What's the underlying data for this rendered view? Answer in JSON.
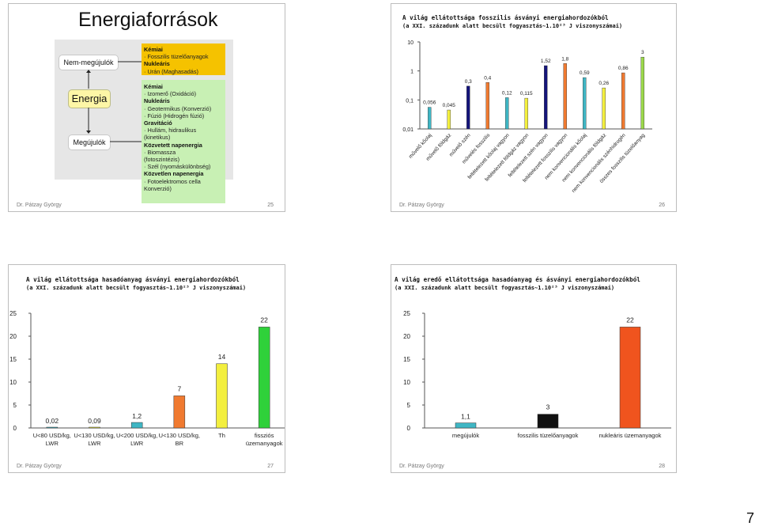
{
  "page_number": "7",
  "slide25": {
    "title": "Energiaforrások",
    "non_renewable": "Nem-megújulók",
    "energy": "Energia",
    "renewable": "Megújulók",
    "yellow_box": [
      "Kémiai",
      "· Fosszilis tüzelőanyagok",
      "Nukleáris",
      "· Urán (Maghasadás)"
    ],
    "green_box": [
      "Kémiai",
      "· Izomerő (Oxidáció)",
      "Nukleáris",
      "· Geotermikus (Konverzió)",
      "· Fúzió (Hidrogén fúzió)",
      "Gravitáció",
      "· Hullám, hidraulikus",
      "(kinetikus)",
      "Közvetett napenergia",
      "· Biomassza",
      "(fotoszintézis)",
      "· Szél (nyomáskülönbség)",
      "Közvetlen napenergia",
      "· Fotoelektromos cella",
      "Konverzió)"
    ],
    "author": "Dr. Pátzay György",
    "number": "25"
  },
  "slide26": {
    "title_line1": "A világ ellátottsága fosszilis ásványi energiahordozókból",
    "title_line2": "(a XXI. századunk alatt becsült fogyasztás~1.10²³ J viszonyszámai)",
    "author": "Dr. Pátzay György",
    "number": "26"
  },
  "slide27": {
    "title_line1": "A világ ellátottsága hasadóanyag ásványi energiahordozókból",
    "title_line2": "(a XXI. századunk alatt becsült fogyasztás~1.10²³ J viszonyszámai)",
    "author": "Dr. Pátzay György",
    "number": "27"
  },
  "slide28": {
    "title_line1": "A világ eredő ellátottsága hasadóanyag és ásványi energiahordozókból",
    "title_line2": "(a XXI. századunk alatt becsült fogyasztás~1.10²³ J viszonyszámai)",
    "author": "Dr. Pátzay György",
    "number": "28"
  },
  "chart_data": [
    {
      "id": "fossil",
      "type": "bar",
      "scale": "log",
      "ylim": [
        0.01,
        10
      ],
      "yticks": [
        "10",
        "1",
        "0,1",
        "0,01"
      ],
      "tick_values": [
        10,
        1,
        0.1,
        0.01
      ],
      "categories": [
        "művelő kőolaj",
        "művelő földgáz",
        "művelő szén",
        "művelés fosszilis",
        "feltételezett kőolaj vagyon",
        "feltételezett földgáz vagyon",
        "feltételezett szén vagyon",
        "feltételezett fosszilis vagyon",
        "nem konvencionális kőolaj",
        "nem konvencionális földgáz",
        "nem konvencionális szénhidrogén",
        "összes fosszilis tüzelőanyag"
      ],
      "values": [
        0.056,
        0.045,
        0.3,
        0.4,
        0.12,
        0.115,
        1.52,
        1.8,
        0.59,
        0.26,
        0.86,
        3
      ],
      "labels": [
        "0,056",
        "0,045",
        "0,3",
        "0,4",
        "0,12",
        "0,115",
        "1,52",
        "1,8",
        "0,59",
        "0,26",
        "0,86",
        "3"
      ],
      "colors": [
        "#3fb6c4",
        "#f3ef3e",
        "#14147a",
        "#f07a30",
        "#3fb6c4",
        "#f3ef3e",
        "#14147a",
        "#f07a30",
        "#3fb6c4",
        "#f3ef3e",
        "#f07a30",
        "#9bd84a"
      ]
    },
    {
      "id": "fissile",
      "type": "bar",
      "ylim": [
        0,
        25
      ],
      "yticks": [
        "25",
        "20",
        "15",
        "10",
        "5",
        "0"
      ],
      "tick_values": [
        25,
        20,
        15,
        10,
        5,
        0
      ],
      "categories": [
        [
          "U<80 USD/kg,",
          "LWR"
        ],
        [
          "U<130 USD/kg,",
          "LWR"
        ],
        [
          "U<200 USD/kg,",
          "LWR"
        ],
        [
          "U<130 USD/kg,",
          "BR"
        ],
        [
          "Th",
          ""
        ],
        [
          "fissziós",
          "üzemanyagok"
        ]
      ],
      "values": [
        0.02,
        0.09,
        1.2,
        7,
        14,
        22
      ],
      "labels": [
        "0,02",
        "0,09",
        "1,2",
        "7",
        "14",
        "22"
      ],
      "colors": [
        "#3fb6c4",
        "#f3ef3e",
        "#3fb6c4",
        "#f07a30",
        "#f3ef3e",
        "#2fd13a"
      ]
    },
    {
      "id": "combined",
      "type": "bar",
      "ylim": [
        0,
        25
      ],
      "yticks": [
        "25",
        "20",
        "15",
        "10",
        "5",
        "0"
      ],
      "tick_values": [
        25,
        20,
        15,
        10,
        5,
        0
      ],
      "categories": [
        [
          "megújulók"
        ],
        [
          "fosszilis tüzelőanyagok"
        ],
        [
          "nukleáris üzemanyagok"
        ]
      ],
      "values": [
        1.1,
        3,
        22
      ],
      "labels": [
        "1,1",
        "3",
        "22"
      ],
      "colors": [
        "#3fb6c4",
        "#111111",
        "#f0541e"
      ]
    }
  ]
}
